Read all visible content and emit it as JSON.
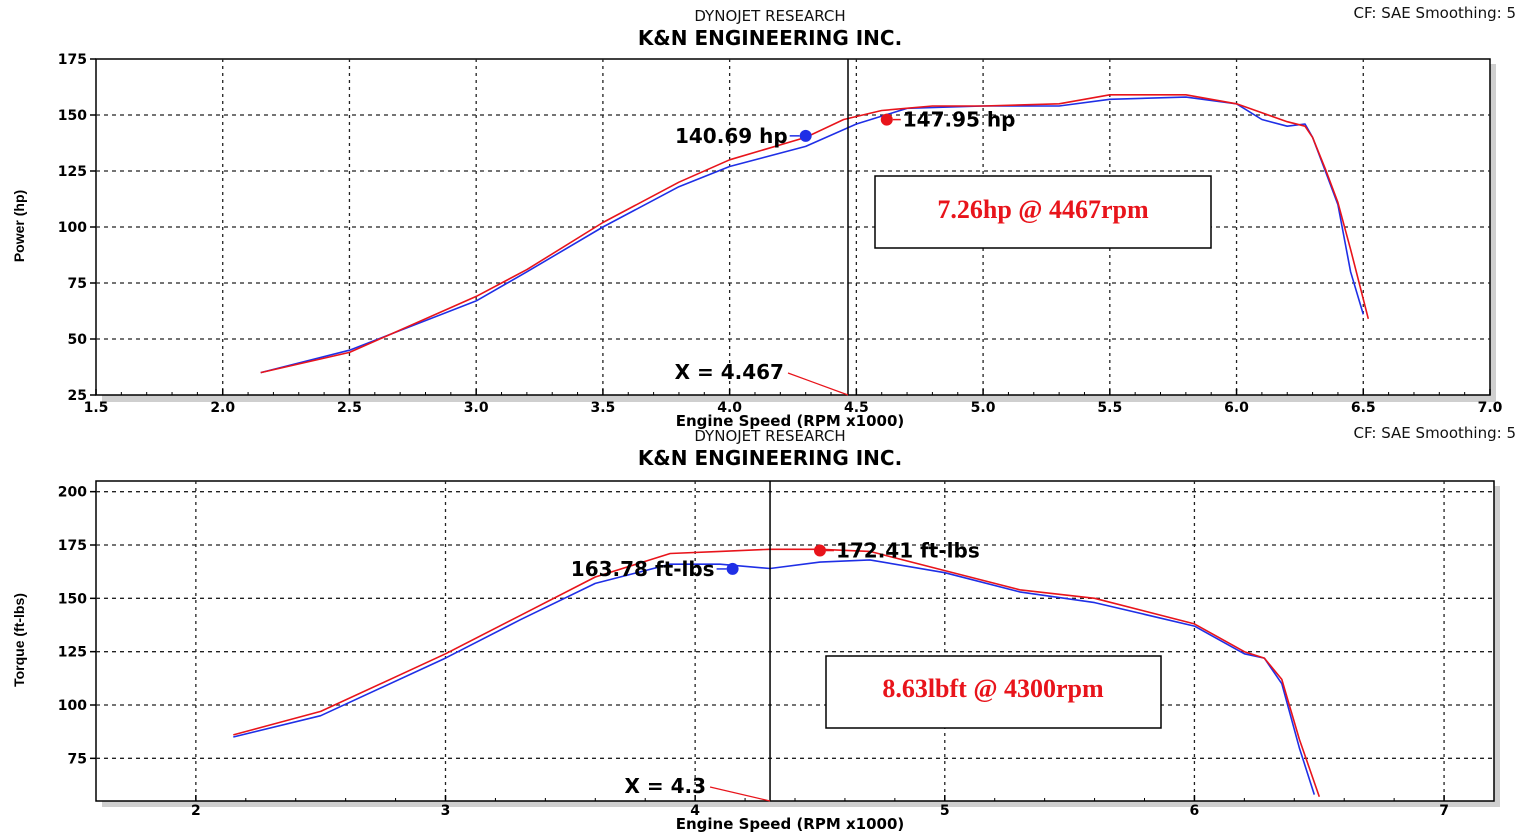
{
  "colors": {
    "before": "#1f2fe6",
    "after": "#e8141b",
    "frame": "#000000",
    "grid": "#222222"
  },
  "chart_data": [
    {
      "type": "line",
      "header": {
        "subtitle": "DYNOJET RESEARCH",
        "title": "K&N ENGINEERING INC.",
        "cf": "CF: SAE   Smoothing: 5"
      },
      "xlabel": "Engine Speed (RPM x1000)",
      "ylabel": "Power (hp)",
      "xlim": [
        1.5,
        7.0
      ],
      "ylim": [
        25,
        175
      ],
      "x_ticks": [
        1.5,
        2.0,
        2.5,
        3.0,
        3.5,
        4.0,
        4.5,
        5.0,
        5.5,
        6.0,
        6.5,
        7.0
      ],
      "x_tick_labels": [
        "1.5",
        "2.0",
        "2.5",
        "3.0",
        "3.5",
        "4.0",
        "4.5",
        "5.0",
        "5.5",
        "6.0",
        "6.5",
        "7.0"
      ],
      "y_ticks": [
        25,
        50,
        75,
        100,
        125,
        150,
        175
      ],
      "grid": true,
      "series": [
        {
          "color": "before",
          "x": [
            2.15,
            2.5,
            3.0,
            3.2,
            3.5,
            3.8,
            4.0,
            4.3,
            4.5,
            4.7,
            5.0,
            5.3,
            5.5,
            5.8,
            6.0,
            6.1,
            6.2,
            6.27,
            6.3,
            6.35,
            6.4,
            6.45,
            6.5
          ],
          "y": [
            35,
            45,
            67,
            80,
            100,
            118,
            127,
            136,
            146,
            153,
            154,
            154,
            157,
            158,
            155,
            148,
            145,
            146,
            140,
            125,
            110,
            80,
            61
          ]
        },
        {
          "color": "after",
          "x": [
            2.15,
            2.5,
            3.0,
            3.2,
            3.5,
            3.8,
            4.0,
            4.3,
            4.45,
            4.6,
            4.8,
            5.0,
            5.3,
            5.5,
            5.8,
            6.0,
            6.1,
            6.2,
            6.27,
            6.3,
            6.35,
            6.4,
            6.45,
            6.52
          ],
          "y": [
            35,
            44,
            69,
            81,
            102,
            120,
            130,
            140,
            148,
            152,
            154,
            154,
            155,
            159,
            159,
            155,
            151,
            147,
            145,
            140,
            126,
            111,
            90,
            59
          ]
        }
      ],
      "annotations": [
        {
          "label": "140.69 hp",
          "x": 4.3,
          "y": 140.69,
          "color": "before"
        },
        {
          "label": "147.95 hp",
          "x": 4.62,
          "y": 147.95,
          "color": "after"
        }
      ],
      "cursor": {
        "label": "X = 4.467",
        "x": 4.467
      },
      "callout": "7.26hp @ 4467rpm"
    },
    {
      "type": "line",
      "header": {
        "subtitle": "DYNOJET RESEARCH",
        "title": "K&N ENGINEERING INC.",
        "cf": "CF: SAE   Smoothing: 5"
      },
      "xlabel": "Engine Speed (RPM x1000)",
      "ylabel": "Torque (ft-lbs)",
      "xlim": [
        1.6,
        7.2
      ],
      "ylim": [
        55,
        205
      ],
      "x_ticks": [
        2,
        3,
        4,
        5,
        6,
        7
      ],
      "x_tick_labels": [
        "2",
        "3",
        "4",
        "5",
        "6",
        "7"
      ],
      "y_ticks": [
        75,
        100,
        125,
        150,
        175,
        200
      ],
      "grid": true,
      "series": [
        {
          "color": "before",
          "x": [
            2.15,
            2.5,
            3.0,
            3.3,
            3.6,
            3.9,
            4.1,
            4.3,
            4.5,
            4.7,
            5.0,
            5.3,
            5.6,
            6.0,
            6.2,
            6.28,
            6.35,
            6.42,
            6.48
          ],
          "y": [
            85,
            95,
            122,
            140,
            157,
            166,
            166,
            164,
            167,
            168,
            162,
            153,
            148,
            137,
            124,
            122,
            110,
            80,
            58
          ]
        },
        {
          "color": "after",
          "x": [
            2.15,
            2.5,
            3.0,
            3.3,
            3.6,
            3.9,
            4.1,
            4.3,
            4.5,
            4.7,
            5.0,
            5.3,
            5.6,
            6.0,
            6.2,
            6.28,
            6.35,
            6.42,
            6.5
          ],
          "y": [
            86,
            97,
            124,
            142,
            160,
            171,
            172,
            173,
            173,
            172,
            163,
            154,
            150,
            138,
            125,
            122,
            112,
            84,
            57
          ]
        }
      ],
      "annotations": [
        {
          "label": "163.78 ft-lbs",
          "x": 4.15,
          "y": 163.78,
          "color": "before"
        },
        {
          "label": "172.41 ft-lbs",
          "x": 4.5,
          "y": 172.41,
          "color": "after"
        }
      ],
      "cursor": {
        "label": "X = 4.3",
        "x": 4.3
      },
      "callout": "8.63lbft @ 4300rpm"
    }
  ]
}
